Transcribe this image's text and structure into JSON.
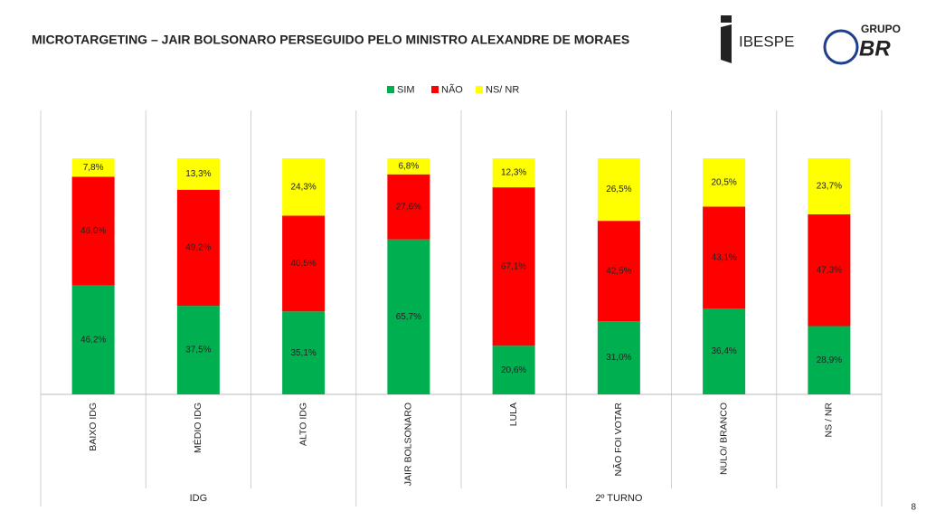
{
  "chart_data": {
    "type": "bar",
    "stacked": true,
    "title": "MICROTARGETING – JAIR BOLSONARO PERSEGUIDO PELO MINISTRO ALEXANDRE DE MORAES",
    "groups": [
      {
        "name": "IDG",
        "categories": [
          "BAIXO IDG",
          "MÉDIO IDG",
          "ALTO IDG"
        ]
      },
      {
        "name": "2º TURNO",
        "categories": [
          "JAIR BOLSONARO",
          "LULA",
          "NÃO FOI VOTAR",
          "NULO/ BRANCO",
          "NS / NR"
        ]
      }
    ],
    "series": [
      {
        "name": "SIM",
        "color": "#00b050",
        "values": [
          46.2,
          37.5,
          35.1,
          65.7,
          20.6,
          31.0,
          36.4,
          28.9
        ],
        "value_labels": [
          "46,2%",
          "37,5%",
          "35,1%",
          "65,7%",
          "20,6%",
          "31,0%",
          "36,4%",
          "28,9%"
        ]
      },
      {
        "name": "NÃO",
        "color": "#ff0000",
        "values": [
          46.0,
          49.2,
          40.5,
          27.6,
          67.1,
          42.5,
          43.1,
          47.3
        ],
        "value_labels": [
          "46,0%",
          "49,2%",
          "40,5%",
          "27,6%",
          "67,1%",
          "42,5%",
          "43,1%",
          "47,3%"
        ]
      },
      {
        "name": "NS/ NR",
        "color": "#ffff00",
        "values": [
          7.8,
          13.3,
          24.3,
          6.8,
          12.3,
          26.5,
          20.5,
          23.7
        ],
        "value_labels": [
          "7,8%",
          "13,3%",
          "24,3%",
          "6,8%",
          "12,3%",
          "26,5%",
          "20,5%",
          "23,7%"
        ]
      }
    ],
    "legend": "top"
  },
  "logo": {
    "name": "IBESPE"
  },
  "brand": {
    "line1": "GRUPO",
    "line2": "BR"
  },
  "page_number": "8"
}
